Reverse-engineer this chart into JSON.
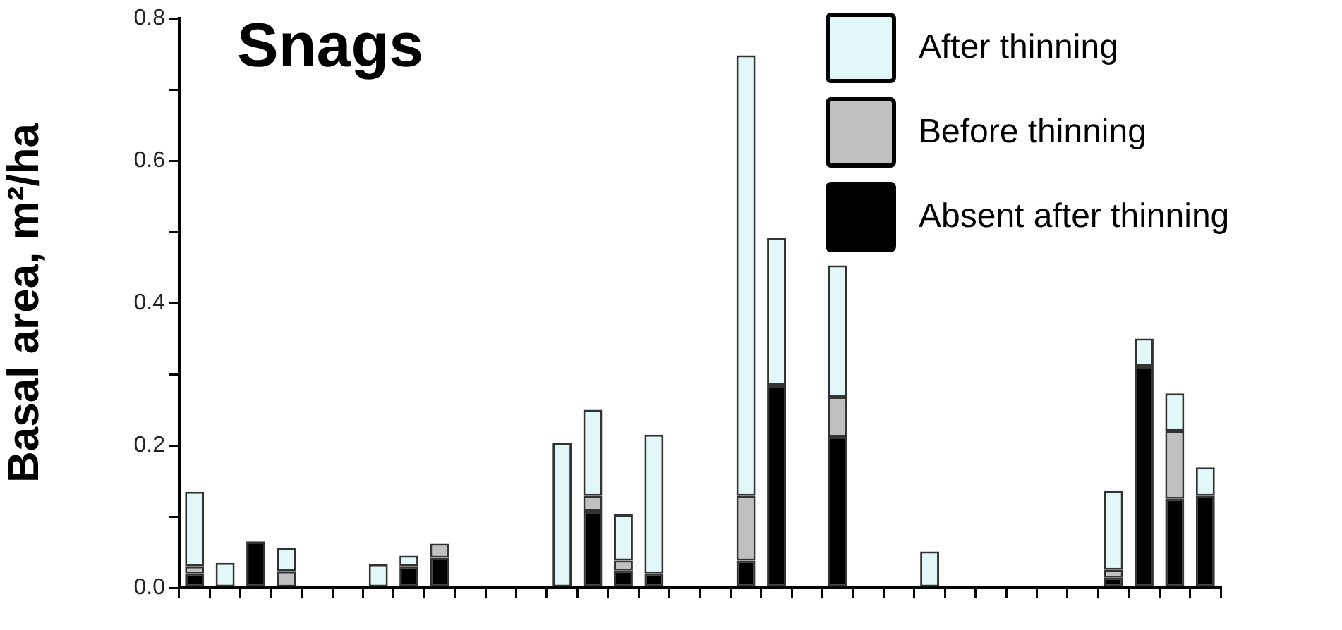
{
  "chart_data": {
    "type": "bar",
    "title": "Snags",
    "ylabel": "Basal area, m²/ha",
    "stacked": true,
    "legend": "top right",
    "tick_labels": "y",
    "categories": [
      null,
      null,
      null,
      null,
      null,
      null,
      null,
      null,
      null,
      null,
      null,
      null,
      null,
      null,
      null,
      null,
      null,
      null,
      null,
      null,
      null,
      null,
      null,
      null,
      null,
      null,
      null,
      null,
      null,
      null,
      null,
      null,
      null,
      null
    ],
    "series": [
      {
        "name": "Absent after thinning",
        "color": "#000000",
        "values": [
          0.02,
          0,
          0.065,
          0,
          0,
          0,
          0,
          0.03,
          0.042,
          0,
          0,
          0,
          0,
          0.107,
          0.024,
          0.02,
          0,
          0,
          0.038,
          0.285,
          0,
          0.212,
          0,
          0,
          0,
          0,
          0,
          0,
          0,
          0,
          0.014,
          0.311,
          0.125,
          0.129
        ]
      },
      {
        "name": "Before thinning",
        "color": "#c0c0c0",
        "values": [
          0.01,
          0,
          0,
          0.023,
          0,
          0,
          0,
          0,
          0.02,
          0,
          0,
          0,
          0,
          0.022,
          0.014,
          0,
          0,
          0,
          0.091,
          0,
          0,
          0.056,
          0,
          0,
          0,
          0,
          0,
          0,
          0,
          0,
          0.011,
          0,
          0.095,
          0
        ]
      },
      {
        "name": "After thinning",
        "color": "#e2f8f8",
        "values": [
          0.105,
          0.035,
          0,
          0.033,
          0,
          0,
          0.033,
          0.015,
          0,
          0,
          0,
          0,
          0.204,
          0.121,
          0.065,
          0.195,
          0,
          0,
          0.619,
          0.206,
          0,
          0.185,
          0,
          0,
          0.051,
          0,
          0,
          0,
          0,
          0,
          0.111,
          0.039,
          0.053,
          0.04
        ]
      }
    ],
    "ylim": [
      0,
      0.8
    ],
    "yticks": [
      {
        "value": 0,
        "label": "0.0"
      },
      {
        "value": 0.1,
        "label": null
      },
      {
        "value": 0.2,
        "label": "0.2"
      },
      {
        "value": 0.3,
        "label": null
      },
      {
        "value": 0.4,
        "label": "0.4"
      },
      {
        "value": 0.5,
        "label": null
      },
      {
        "value": 0.6,
        "label": "0.6"
      },
      {
        "value": 0.7,
        "label": null
      },
      {
        "value": 0.8,
        "label": "0.8"
      }
    ]
  }
}
